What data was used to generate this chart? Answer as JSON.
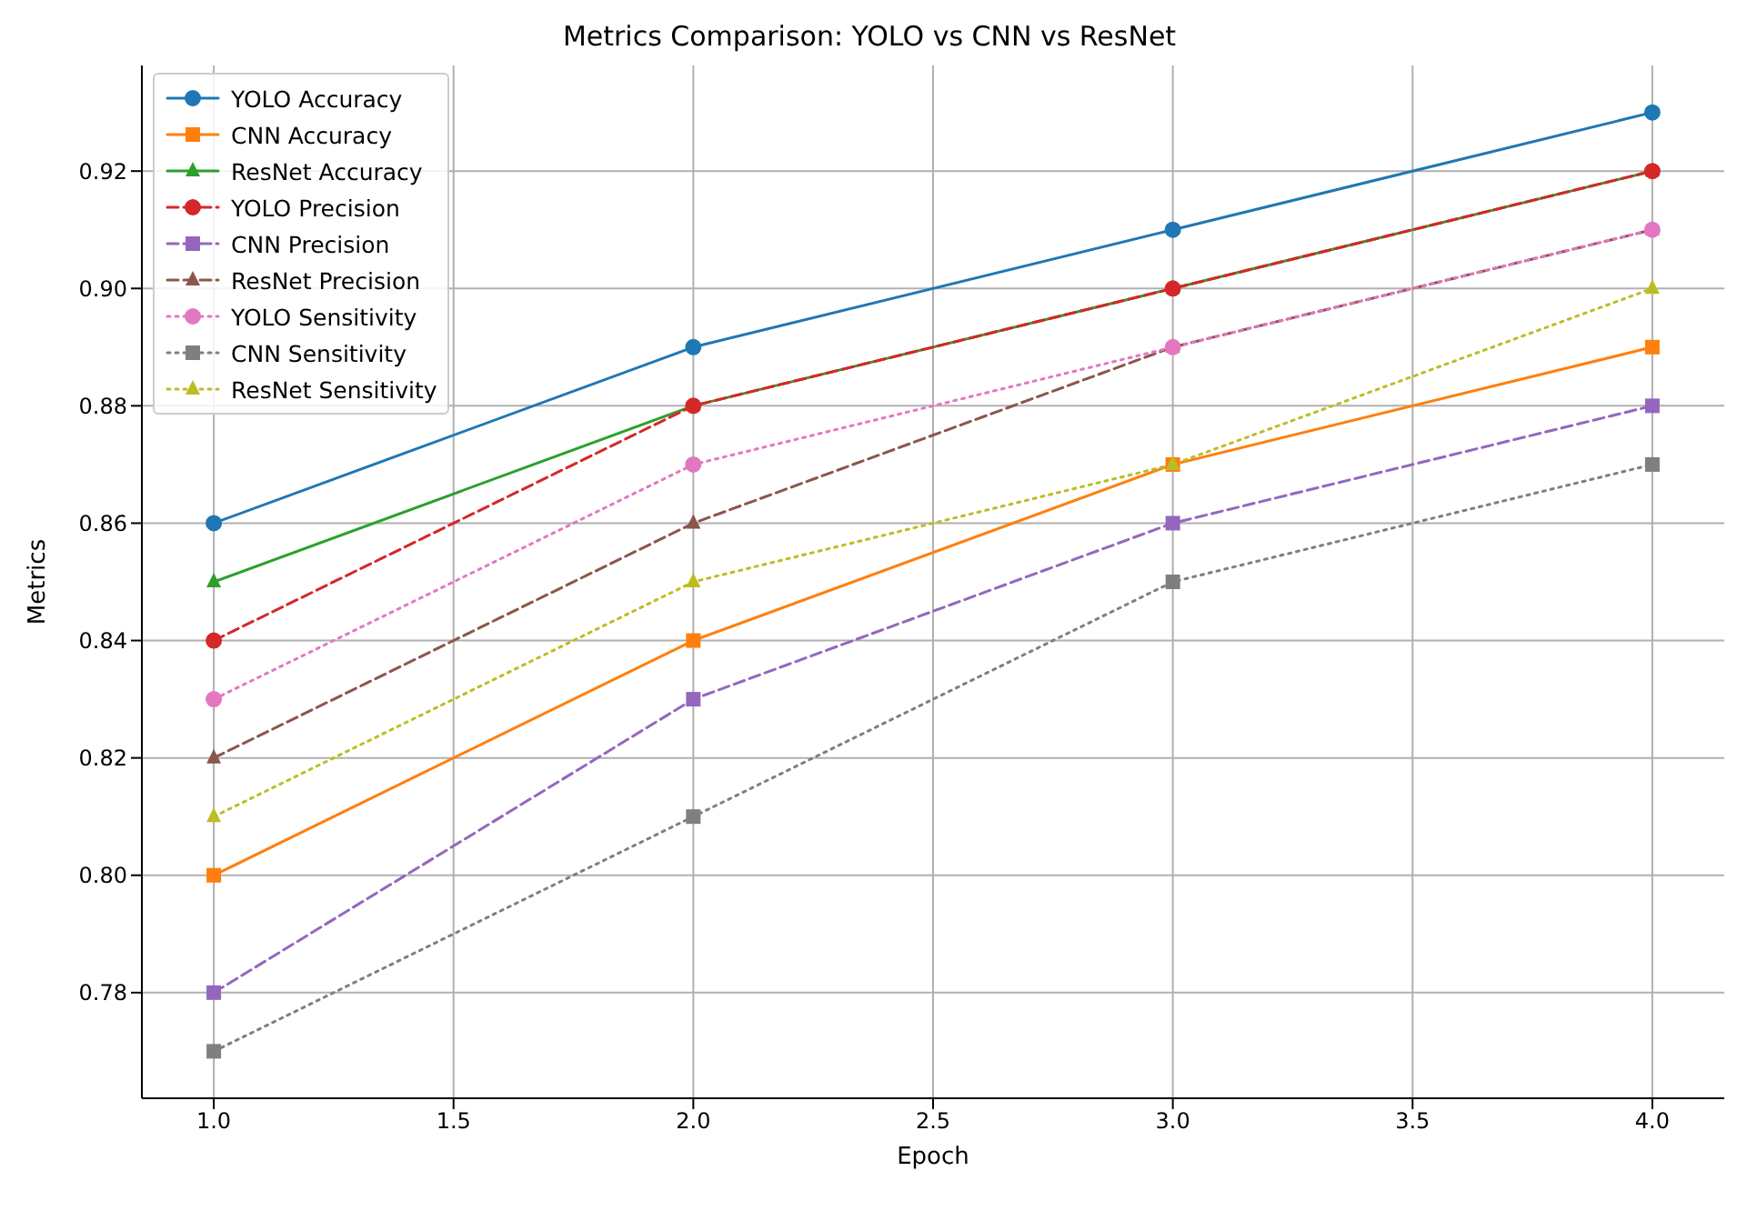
{
  "chart_data": {
    "type": "line",
    "title": "Metrics Comparison: YOLO vs CNN vs ResNet",
    "xlabel": "Epoch",
    "ylabel": "Metrics",
    "x": [
      1,
      2,
      3,
      4
    ],
    "series": [
      {
        "name": "YOLO Accuracy",
        "color": "#1f77b4",
        "marker": "circle",
        "line_style": "solid",
        "values": [
          0.86,
          0.89,
          0.91,
          0.93
        ]
      },
      {
        "name": "CNN Accuracy",
        "color": "#ff7f0e",
        "marker": "square",
        "line_style": "solid",
        "values": [
          0.8,
          0.84,
          0.87,
          0.89
        ]
      },
      {
        "name": "ResNet Accuracy",
        "color": "#2ca02c",
        "marker": "triangle",
        "line_style": "solid",
        "values": [
          0.85,
          0.88,
          0.9,
          0.92
        ]
      },
      {
        "name": "YOLO Precision",
        "color": "#d62728",
        "marker": "circle",
        "line_style": "dashed",
        "values": [
          0.84,
          0.88,
          0.9,
          0.92
        ]
      },
      {
        "name": "CNN Precision",
        "color": "#9467bd",
        "marker": "square",
        "line_style": "dashed",
        "values": [
          0.78,
          0.83,
          0.86,
          0.88
        ]
      },
      {
        "name": "ResNet Precision",
        "color": "#8c564b",
        "marker": "triangle",
        "line_style": "dashed",
        "values": [
          0.82,
          0.86,
          0.89,
          0.91
        ]
      },
      {
        "name": "YOLO Sensitivity",
        "color": "#e377c2",
        "marker": "circle",
        "line_style": "dotted",
        "values": [
          0.83,
          0.87,
          0.89,
          0.91
        ]
      },
      {
        "name": "CNN Sensitivity",
        "color": "#7f7f7f",
        "marker": "square",
        "line_style": "dotted",
        "values": [
          0.77,
          0.81,
          0.85,
          0.87
        ]
      },
      {
        "name": "ResNet Sensitivity",
        "color": "#bcbd22",
        "marker": "triangle",
        "line_style": "dotted",
        "values": [
          0.81,
          0.85,
          0.87,
          0.9
        ]
      }
    ],
    "xlim": [
      0.85,
      4.15
    ],
    "xticks": [
      {
        "value": 1,
        "label": "1.0"
      },
      {
        "value": 1.5,
        "label": "1.5"
      },
      {
        "value": 2,
        "label": "2.0"
      },
      {
        "value": 2.5,
        "label": "2.5"
      },
      {
        "value": 3,
        "label": "3.0"
      },
      {
        "value": 3.5,
        "label": "3.5"
      },
      {
        "value": 4,
        "label": "4.0"
      }
    ],
    "ylim": [
      0.762,
      0.938
    ],
    "yticks": [
      {
        "value": 0.78,
        "label": "0.78"
      },
      {
        "value": 0.8,
        "label": "0.80"
      },
      {
        "value": 0.82,
        "label": "0.82"
      },
      {
        "value": 0.84,
        "label": "0.84"
      },
      {
        "value": 0.86,
        "label": "0.86"
      },
      {
        "value": 0.88,
        "label": "0.88"
      },
      {
        "value": 0.9,
        "label": "0.90"
      },
      {
        "value": 0.92,
        "label": "0.92"
      }
    ],
    "grid": true,
    "legend": "top left"
  }
}
